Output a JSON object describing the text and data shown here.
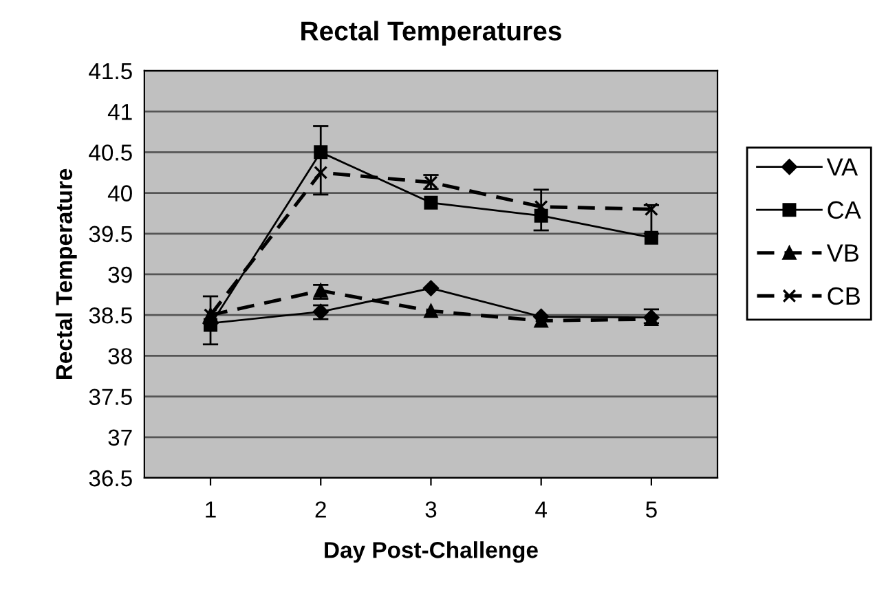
{
  "chart_data": {
    "type": "line",
    "title": "Rectal Temperatures",
    "xlabel": "Day Post-Challenge",
    "ylabel": "Rectal Temperature",
    "categories": [
      "1",
      "2",
      "3",
      "4",
      "5"
    ],
    "ylim": [
      36.5,
      41.5
    ],
    "yticks": [
      36.5,
      37,
      37.5,
      38,
      38.5,
      39,
      39.5,
      40,
      40.5,
      41,
      41.5
    ],
    "grid": "y",
    "legend": "right",
    "series": [
      {
        "name": "VA",
        "color": "#000000",
        "marker": "diamond",
        "line_style": "solid",
        "values": [
          38.4,
          38.54,
          38.83,
          38.48,
          38.47
        ],
        "errors": [
          null,
          [
            38.45,
            38.62
          ],
          null,
          null,
          null
        ]
      },
      {
        "name": "CA",
        "color": "#000000",
        "marker": "square",
        "line_style": "solid",
        "values": [
          38.38,
          40.5,
          39.88,
          39.72,
          39.45
        ],
        "errors": [
          [
            38.14,
            38.73
          ],
          [
            39.98,
            40.82
          ],
          null,
          [
            39.54,
            40.04
          ],
          null
        ]
      },
      {
        "name": "VB",
        "color": "#000000",
        "marker": "triangle",
        "line_style": "dashed",
        "values": [
          38.5,
          38.8,
          38.55,
          38.43,
          38.45
        ],
        "errors": [
          null,
          [
            38.7,
            38.87
          ],
          null,
          null,
          [
            38.4,
            38.57
          ]
        ]
      },
      {
        "name": "CB",
        "color": "#000000",
        "marker": "cross",
        "line_style": "dashed",
        "values": [
          38.5,
          40.25,
          40.13,
          39.83,
          39.8
        ],
        "errors": [
          null,
          null,
          [
            40.05,
            40.22
          ],
          null,
          [
            39.5,
            39.85
          ]
        ]
      }
    ]
  }
}
